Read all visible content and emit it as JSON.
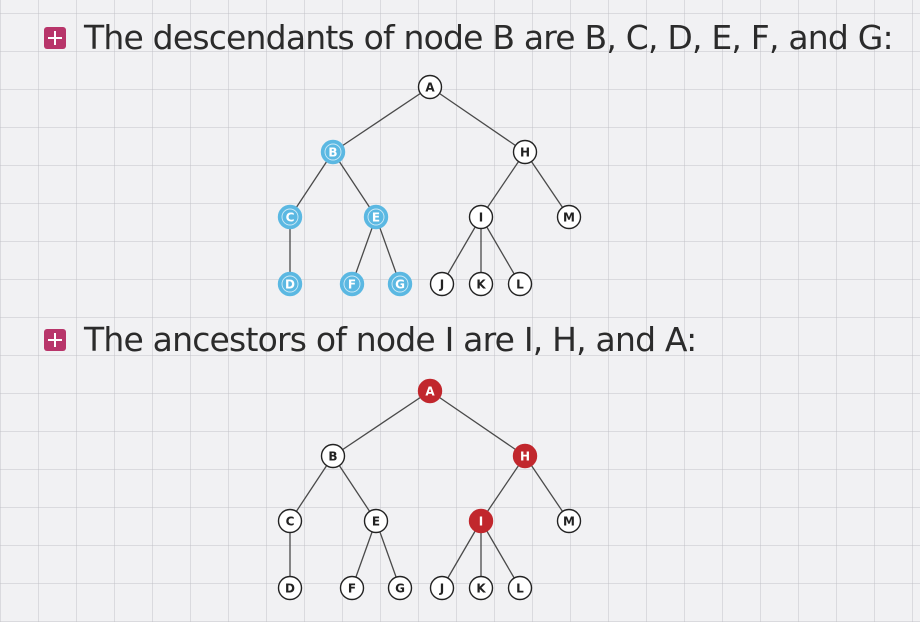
{
  "colors": {
    "bullet": "#b8356a",
    "plain_node_fill": "#ffffff",
    "descendant_fill": "#5bb8e2",
    "ancestor_fill": "#c1272d",
    "edge": "#4a4a4a"
  },
  "sections": [
    {
      "heading": "The descendants of node B are B, C, D, E, F, and G:",
      "highlight_color": "#5bb8e2",
      "highlight_text_color": "#ffffff",
      "highlighted_nodes": [
        "B",
        "C",
        "D",
        "E",
        "F",
        "G"
      ]
    },
    {
      "heading": "The ancestors of node I are I, H, and A:",
      "highlight_color": "#c1272d",
      "highlight_text_color": "#ffffff",
      "highlighted_nodes": [
        "A",
        "H",
        "I"
      ]
    }
  ],
  "tree": {
    "nodes": [
      "A",
      "B",
      "C",
      "D",
      "E",
      "F",
      "G",
      "H",
      "I",
      "J",
      "K",
      "L",
      "M"
    ],
    "edges": [
      [
        "A",
        "B"
      ],
      [
        "A",
        "H"
      ],
      [
        "B",
        "C"
      ],
      [
        "B",
        "E"
      ],
      [
        "C",
        "D"
      ],
      [
        "E",
        "F"
      ],
      [
        "E",
        "G"
      ],
      [
        "H",
        "I"
      ],
      [
        "H",
        "M"
      ],
      [
        "I",
        "J"
      ],
      [
        "I",
        "K"
      ],
      [
        "I",
        "L"
      ]
    ]
  }
}
